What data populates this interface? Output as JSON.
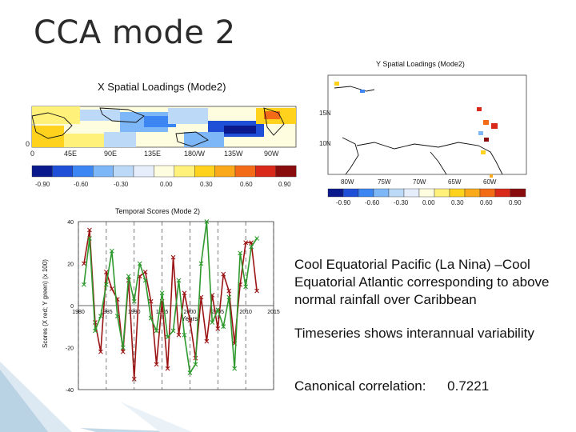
{
  "slide": {
    "title": "CCA mode 2",
    "text1": "Cool Equatorial Pacific (La Nina) –Cool Equatorial Atlantic  corresponding to above normal rainfall over Caribbean",
    "text2": "Timeseries shows interannual variability",
    "text3_label": "Canonical correlation:",
    "text3_value": "0.7221"
  },
  "x_map": {
    "title": "X Spatial Loadings (Mode2)",
    "lon_labels": [
      "0",
      "45E",
      "90E",
      "135E",
      "180/W",
      "135W",
      "90W"
    ],
    "lat_labels": [
      "0"
    ],
    "colorbar_labels": [
      "-0.90",
      "-0.60",
      "-0.30",
      "0.00",
      "0.30",
      "0.60",
      "0.90"
    ],
    "colors": [
      "#0a1a8c",
      "#1e4fd6",
      "#3b86f2",
      "#7db7f7",
      "#bcd9f8",
      "#e6eefc",
      "#fffde0",
      "#fff17a",
      "#ffd21e",
      "#f9a91a",
      "#f36b16",
      "#d8291a",
      "#8a0d0d"
    ]
  },
  "y_map": {
    "title": "Y Spatial Loadings (Mode2)",
    "lat_labels": [
      "15N",
      "10N"
    ],
    "lon_labels": [
      "80W",
      "75W",
      "70W",
      "65W",
      "60W"
    ],
    "colorbar_labels": [
      "-0.90",
      "-0.60",
      "-0.30",
      "0.00",
      "0.30",
      "0.60",
      "0.90"
    ]
  },
  "timeseries": {
    "title": "Temporal Scores (Mode 2)",
    "ylabel": "Scores (X red; Y green) (x 100)",
    "yticks": [
      "40",
      "20",
      "0",
      "-20",
      "-40"
    ],
    "xticks": [
      "1980",
      "1985",
      "1990",
      "1995",
      "2000",
      "2005",
      "2010",
      "2015"
    ],
    "xlabel": "Years",
    "colors": {
      "x": "#9b1414",
      "y": "#2e9a2e"
    },
    "chart_data": {
      "type": "line",
      "x": [
        1981,
        1982,
        1983,
        1984,
        1985,
        1986,
        1987,
        1988,
        1989,
        1990,
        1991,
        1992,
        1993,
        1994,
        1995,
        1996,
        1997,
        1998,
        1999,
        2000,
        2001,
        2002,
        2003,
        2004,
        2005,
        2006,
        2007,
        2008,
        2009,
        2010,
        2011,
        2012
      ],
      "series": [
        {
          "name": "X",
          "values": [
            20,
            36,
            -8,
            -22,
            16,
            8,
            3,
            -22,
            12,
            -35,
            14,
            16,
            2,
            -28,
            2,
            -30,
            23,
            -14,
            6,
            -7,
            -25,
            4,
            -17,
            5,
            -11,
            15,
            7,
            -18,
            10,
            30,
            30,
            7
          ]
        },
        {
          "name": "Y",
          "values": [
            10,
            32,
            -12,
            -5,
            10,
            26,
            -5,
            -20,
            14,
            2,
            20,
            12,
            -6,
            -12,
            6,
            -15,
            -12,
            12,
            -14,
            -32,
            -28,
            20,
            40,
            -8,
            -2,
            -10,
            4,
            -30,
            25,
            9,
            28,
            32
          ]
        }
      ],
      "ylim": [
        -40,
        40
      ],
      "xlim": [
        1980,
        2015
      ]
    }
  }
}
